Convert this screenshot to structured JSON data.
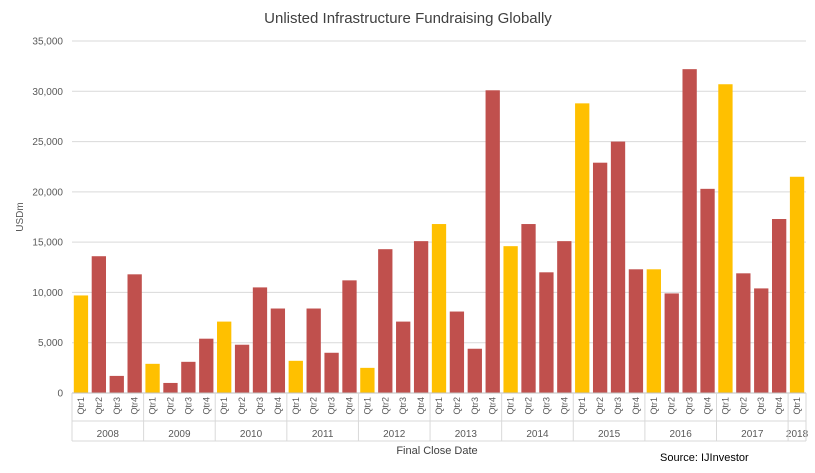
{
  "chart_data": {
    "type": "bar",
    "title": "Unlisted Infrastructure Fundraising Globally",
    "xlabel": "Final Close Date",
    "ylabel": "USDm",
    "source": "Source: IJInvestor",
    "ylim": [
      0,
      35000
    ],
    "yticks": [
      0,
      5000,
      10000,
      15000,
      20000,
      25000,
      30000,
      35000
    ],
    "ytick_labels": [
      "0",
      "5,000",
      "10,000",
      "15,000",
      "20,000",
      "25,000",
      "30,000",
      "35,000"
    ],
    "grid": true,
    "legend": "none",
    "colors": {
      "q1": "#FFC000",
      "other": "#C0504D"
    },
    "years": [
      {
        "year": "2008",
        "quarters": [
          "Qtr1",
          "Qtr2",
          "Qtr3",
          "Qtr4"
        ],
        "values": [
          9700,
          13600,
          1700,
          11800
        ]
      },
      {
        "year": "2009",
        "quarters": [
          "Qtr1",
          "Qtr2",
          "Qtr3",
          "Qtr4"
        ],
        "values": [
          2900,
          1000,
          3100,
          5400
        ]
      },
      {
        "year": "2010",
        "quarters": [
          "Qtr1",
          "Qtr2",
          "Qtr3",
          "Qtr4"
        ],
        "values": [
          7100,
          4800,
          10500,
          8400
        ]
      },
      {
        "year": "2011",
        "quarters": [
          "Qtr1",
          "Qtr2",
          "Qtr3",
          "Qtr4"
        ],
        "values": [
          3200,
          8400,
          4000,
          11200
        ]
      },
      {
        "year": "2012",
        "quarters": [
          "Qtr1",
          "Qtr2",
          "Qtr3",
          "Qtr4"
        ],
        "values": [
          2500,
          14300,
          7100,
          15100
        ]
      },
      {
        "year": "2013",
        "quarters": [
          "Qtr1",
          "Qtr2",
          "Qtr3",
          "Qtr4"
        ],
        "values": [
          16800,
          8100,
          4400,
          30100
        ]
      },
      {
        "year": "2014",
        "quarters": [
          "Qtr1",
          "Qtr2",
          "Qtr3",
          "Qtr4"
        ],
        "values": [
          14600,
          16800,
          12000,
          15100
        ]
      },
      {
        "year": "2015",
        "quarters": [
          "Qtr1",
          "Qtr2",
          "Qtr3",
          "Qtr4"
        ],
        "values": [
          28800,
          22900,
          25000,
          12300
        ]
      },
      {
        "year": "2016",
        "quarters": [
          "Qtr1",
          "Qtr2",
          "Qtr3",
          "Qtr4"
        ],
        "values": [
          12300,
          9900,
          32200,
          20300
        ]
      },
      {
        "year": "2017",
        "quarters": [
          "Qtr1",
          "Qtr2",
          "Qtr3",
          "Qtr4"
        ],
        "values": [
          30700,
          11900,
          10400,
          17300
        ]
      },
      {
        "year": "2018",
        "quarters": [
          "Qtr1"
        ],
        "values": [
          21500
        ]
      }
    ]
  }
}
